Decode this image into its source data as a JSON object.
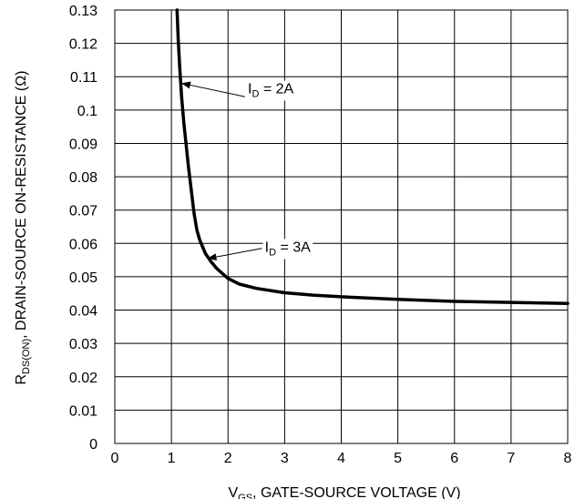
{
  "chart_data": {
    "type": "line",
    "x_axis": {
      "label_main": "V",
      "label_sub": "GS",
      "label_rest": ", GATE-SOURCE VOLTAGE (V)",
      "range": [
        0,
        8
      ],
      "ticks": [
        "0",
        "1",
        "2",
        "3",
        "4",
        "5",
        "6",
        "7",
        "8"
      ]
    },
    "y_axis": {
      "label_main": "R",
      "label_sub": "DS(ON)",
      "label_rest": ", DRAIN-SOURCE ON-RESISTANCE (Ω)",
      "range": [
        0,
        0.13
      ],
      "ticks": [
        "0",
        "0.01",
        "0.02",
        "0.03",
        "0.04",
        "0.05",
        "0.06",
        "0.07",
        "0.08",
        "0.09",
        "0.1",
        "0.11",
        "0.12",
        "0.13"
      ]
    },
    "grid": true,
    "series": [
      {
        "x": [
          1.1,
          1.12,
          1.15,
          1.18,
          1.22,
          1.27,
          1.3,
          1.35,
          1.4,
          1.45,
          1.5,
          1.6,
          1.7,
          1.8,
          1.9,
          2.0,
          2.2,
          2.5,
          3.0,
          3.5,
          4.0,
          5.0,
          6.0,
          7.0,
          8.0
        ],
        "y": [
          0.13,
          0.121,
          0.112,
          0.104,
          0.096,
          0.088,
          0.083,
          0.076,
          0.069,
          0.064,
          0.061,
          0.057,
          0.0545,
          0.0525,
          0.051,
          0.0495,
          0.0478,
          0.0465,
          0.0452,
          0.0445,
          0.044,
          0.0432,
          0.0426,
          0.0423,
          0.042
        ]
      }
    ],
    "annotations": [
      {
        "label_main": "I",
        "label_sub": "D",
        "label_rest": " = 2A",
        "label_x": 2.35,
        "label_y": 0.105,
        "arrow_from": [
          2.3,
          0.104
        ],
        "arrow_to": [
          1.19,
          0.108
        ]
      },
      {
        "label_main": "I",
        "label_sub": "D",
        "label_rest": " = 3A",
        "label_x": 2.65,
        "label_y": 0.0575,
        "arrow_from": [
          2.6,
          0.0585
        ],
        "arrow_to": [
          1.65,
          0.0555
        ]
      }
    ]
  },
  "colors": {
    "line": "#000000",
    "grid": "#000000",
    "background": "#ffffff"
  }
}
